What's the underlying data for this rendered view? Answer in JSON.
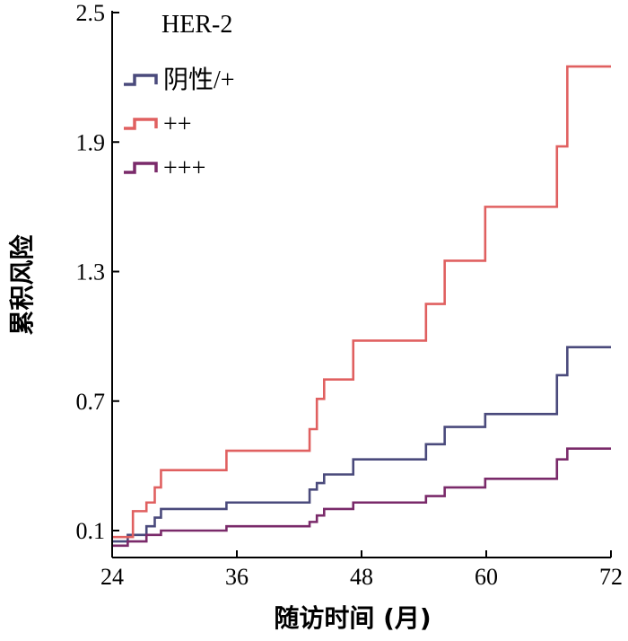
{
  "chart_data": {
    "type": "line",
    "step": true,
    "xlabel": "随访时间 (月)",
    "ylabel": "累积风险",
    "xlim": [
      24,
      72
    ],
    "ylim": [
      0,
      2.5
    ],
    "xticks": [
      24,
      36,
      48,
      60,
      72
    ],
    "xtick_labels": [
      "24",
      "36",
      "48",
      "60",
      "72"
    ],
    "yticks": [
      0.1,
      0.7,
      1.3,
      1.9,
      2.5
    ],
    "ytick_labels": [
      "0.1",
      "0.7",
      "1.3",
      "1.9",
      "2.5"
    ],
    "legend_title": "HER-2",
    "legend_position": "top-left",
    "series": [
      {
        "name": "阴性/+",
        "color": "#4a4a7c",
        "x": [
          24,
          25.5,
          27.3,
          28.1,
          28.7,
          35.0,
          43.0,
          43.7,
          44.4,
          47.2,
          54.2,
          56.0,
          59.9,
          66.8,
          67.8,
          72
        ],
        "y": [
          0.05,
          0.08,
          0.12,
          0.16,
          0.2,
          0.23,
          0.29,
          0.32,
          0.36,
          0.43,
          0.5,
          0.58,
          0.64,
          0.82,
          0.95,
          0.95
        ]
      },
      {
        "name": "++",
        "color": "#e06060",
        "x": [
          24,
          26.0,
          27.3,
          28.1,
          28.7,
          35.0,
          43.0,
          43.7,
          44.4,
          47.2,
          54.2,
          56.0,
          59.9,
          66.8,
          67.8,
          72
        ],
        "y": [
          0.07,
          0.19,
          0.23,
          0.3,
          0.38,
          0.47,
          0.57,
          0.71,
          0.8,
          0.98,
          1.15,
          1.35,
          1.6,
          1.88,
          2.25,
          2.25
        ]
      },
      {
        "name": "+++",
        "color": "#7a2a6a",
        "x": [
          24,
          25.5,
          27.3,
          28.7,
          35.0,
          43.0,
          43.7,
          44.4,
          47.2,
          54.2,
          56.0,
          59.9,
          66.8,
          67.8,
          72
        ],
        "y": [
          0.03,
          0.05,
          0.08,
          0.1,
          0.12,
          0.14,
          0.17,
          0.2,
          0.23,
          0.26,
          0.3,
          0.34,
          0.43,
          0.48,
          0.48
        ]
      }
    ]
  }
}
